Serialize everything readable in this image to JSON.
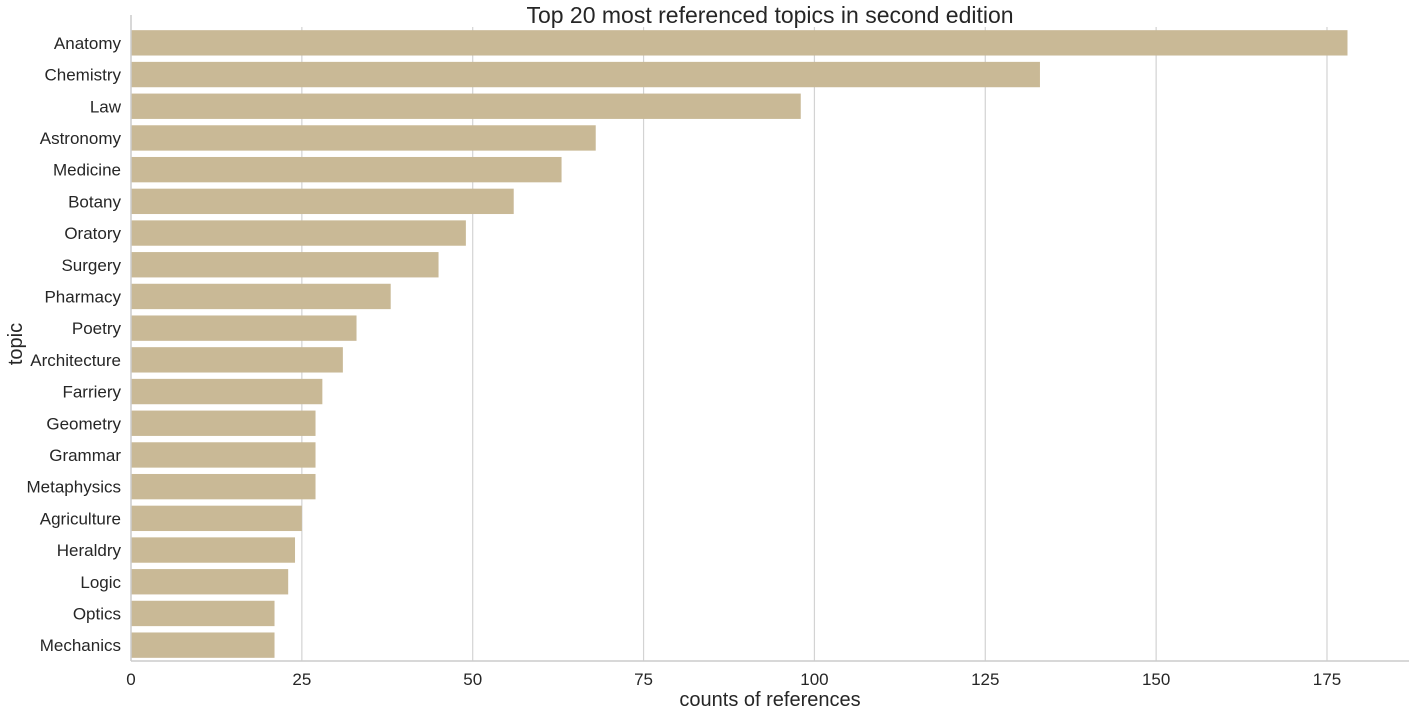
{
  "chart_data": {
    "type": "bar",
    "orientation": "horizontal",
    "title": "Top 20 most referenced topics in second edition",
    "xlabel": "counts of references",
    "ylabel": "topic",
    "xlim": [
      0,
      187
    ],
    "xticks": [
      0,
      25,
      50,
      75,
      100,
      125,
      150,
      175
    ],
    "grid": "vertical",
    "bar_color": "#c9b996",
    "categories": [
      "Anatomy",
      "Chemistry",
      "Law",
      "Astronomy",
      "Medicine",
      "Botany",
      "Oratory",
      "Surgery",
      "Pharmacy",
      "Poetry",
      "Architecture",
      "Farriery",
      "Geometry",
      "Grammar",
      "Metaphysics",
      "Agriculture",
      "Heraldry",
      "Logic",
      "Optics",
      "Mechanics"
    ],
    "values": [
      178,
      133,
      98,
      68,
      63,
      56,
      49,
      45,
      38,
      33,
      31,
      28,
      27,
      27,
      27,
      25,
      24,
      23,
      21,
      21
    ]
  }
}
